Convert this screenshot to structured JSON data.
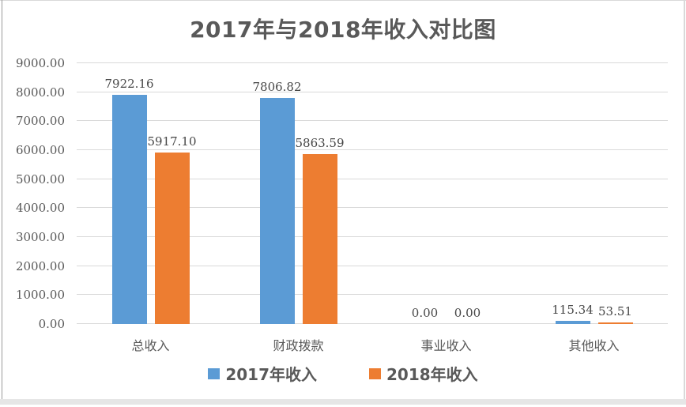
{
  "title": "2017年与2018年收入对比图",
  "chart_data": {
    "type": "bar",
    "title": "2017年与2018年收入对比图",
    "categories": [
      "总收入",
      "财政拨款",
      "事业收入",
      "其他收入"
    ],
    "series": [
      {
        "name": "2017年收入",
        "color": "#5B9BD5",
        "values": [
          7922.16,
          7806.82,
          0.0,
          115.34
        ],
        "labels": [
          "7922.16",
          "7806.82",
          "0.00",
          "115.34"
        ]
      },
      {
        "name": "2018年收入",
        "color": "#ED7D31",
        "values": [
          5917.1,
          5863.59,
          0.0,
          53.51
        ],
        "labels": [
          "5917.10",
          "5863.59",
          "0.00",
          "53.51"
        ]
      }
    ],
    "xlabel": "",
    "ylabel": "",
    "ylim": [
      0,
      9000
    ],
    "y_tick_step": 1000,
    "y_tick_labels": [
      "0.00",
      "1000.00",
      "2000.00",
      "3000.00",
      "4000.00",
      "5000.00",
      "6000.00",
      "7000.00",
      "8000.00",
      "9000.00"
    ],
    "grid": true,
    "legend_position": "bottom"
  },
  "style": {
    "series_blue": "#5B9BD5",
    "series_orange": "#ED7D31",
    "gridline_color": "#D9D9D9",
    "axis_text_color": "#595959",
    "data_label_color": "#464646",
    "title_color": "#595959"
  }
}
